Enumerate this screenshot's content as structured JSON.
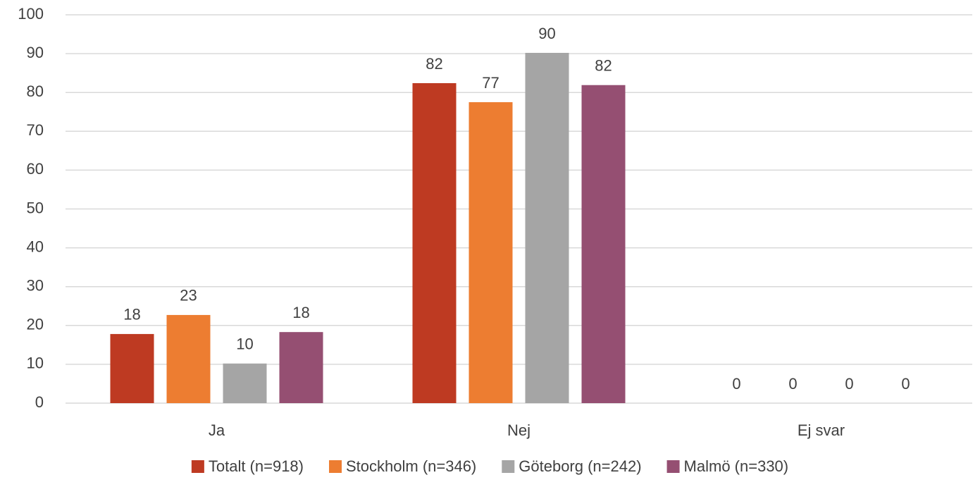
{
  "chart_data": {
    "type": "bar",
    "categories": [
      "Ja",
      "Nej",
      "Ej svar"
    ],
    "series": [
      {
        "name": "Totalt (n=918)",
        "color": "#be3a22",
        "values": [
          17.8,
          82.4,
          0
        ],
        "value_labels": [
          "18",
          "82",
          "0"
        ]
      },
      {
        "name": "Stockholm (n=346)",
        "color": "#ed7d31",
        "values": [
          22.7,
          77.5,
          0
        ],
        "value_labels": [
          "23",
          "77",
          "0"
        ]
      },
      {
        "name": "Göteborg (n=242)",
        "color": "#a5a5a5",
        "values": [
          10.2,
          90.2,
          0
        ],
        "value_labels": [
          "10",
          "90",
          "0"
        ]
      },
      {
        "name": "Malmö (n=330)",
        "color": "#954f72",
        "values": [
          18.3,
          81.9,
          0
        ],
        "value_labels": [
          "18",
          "82",
          "0"
        ]
      }
    ],
    "ylim": [
      0,
      100
    ],
    "yticks": [
      0,
      10,
      20,
      30,
      40,
      50,
      60,
      70,
      80,
      90,
      100
    ],
    "grid": true,
    "legend": "bottom"
  }
}
